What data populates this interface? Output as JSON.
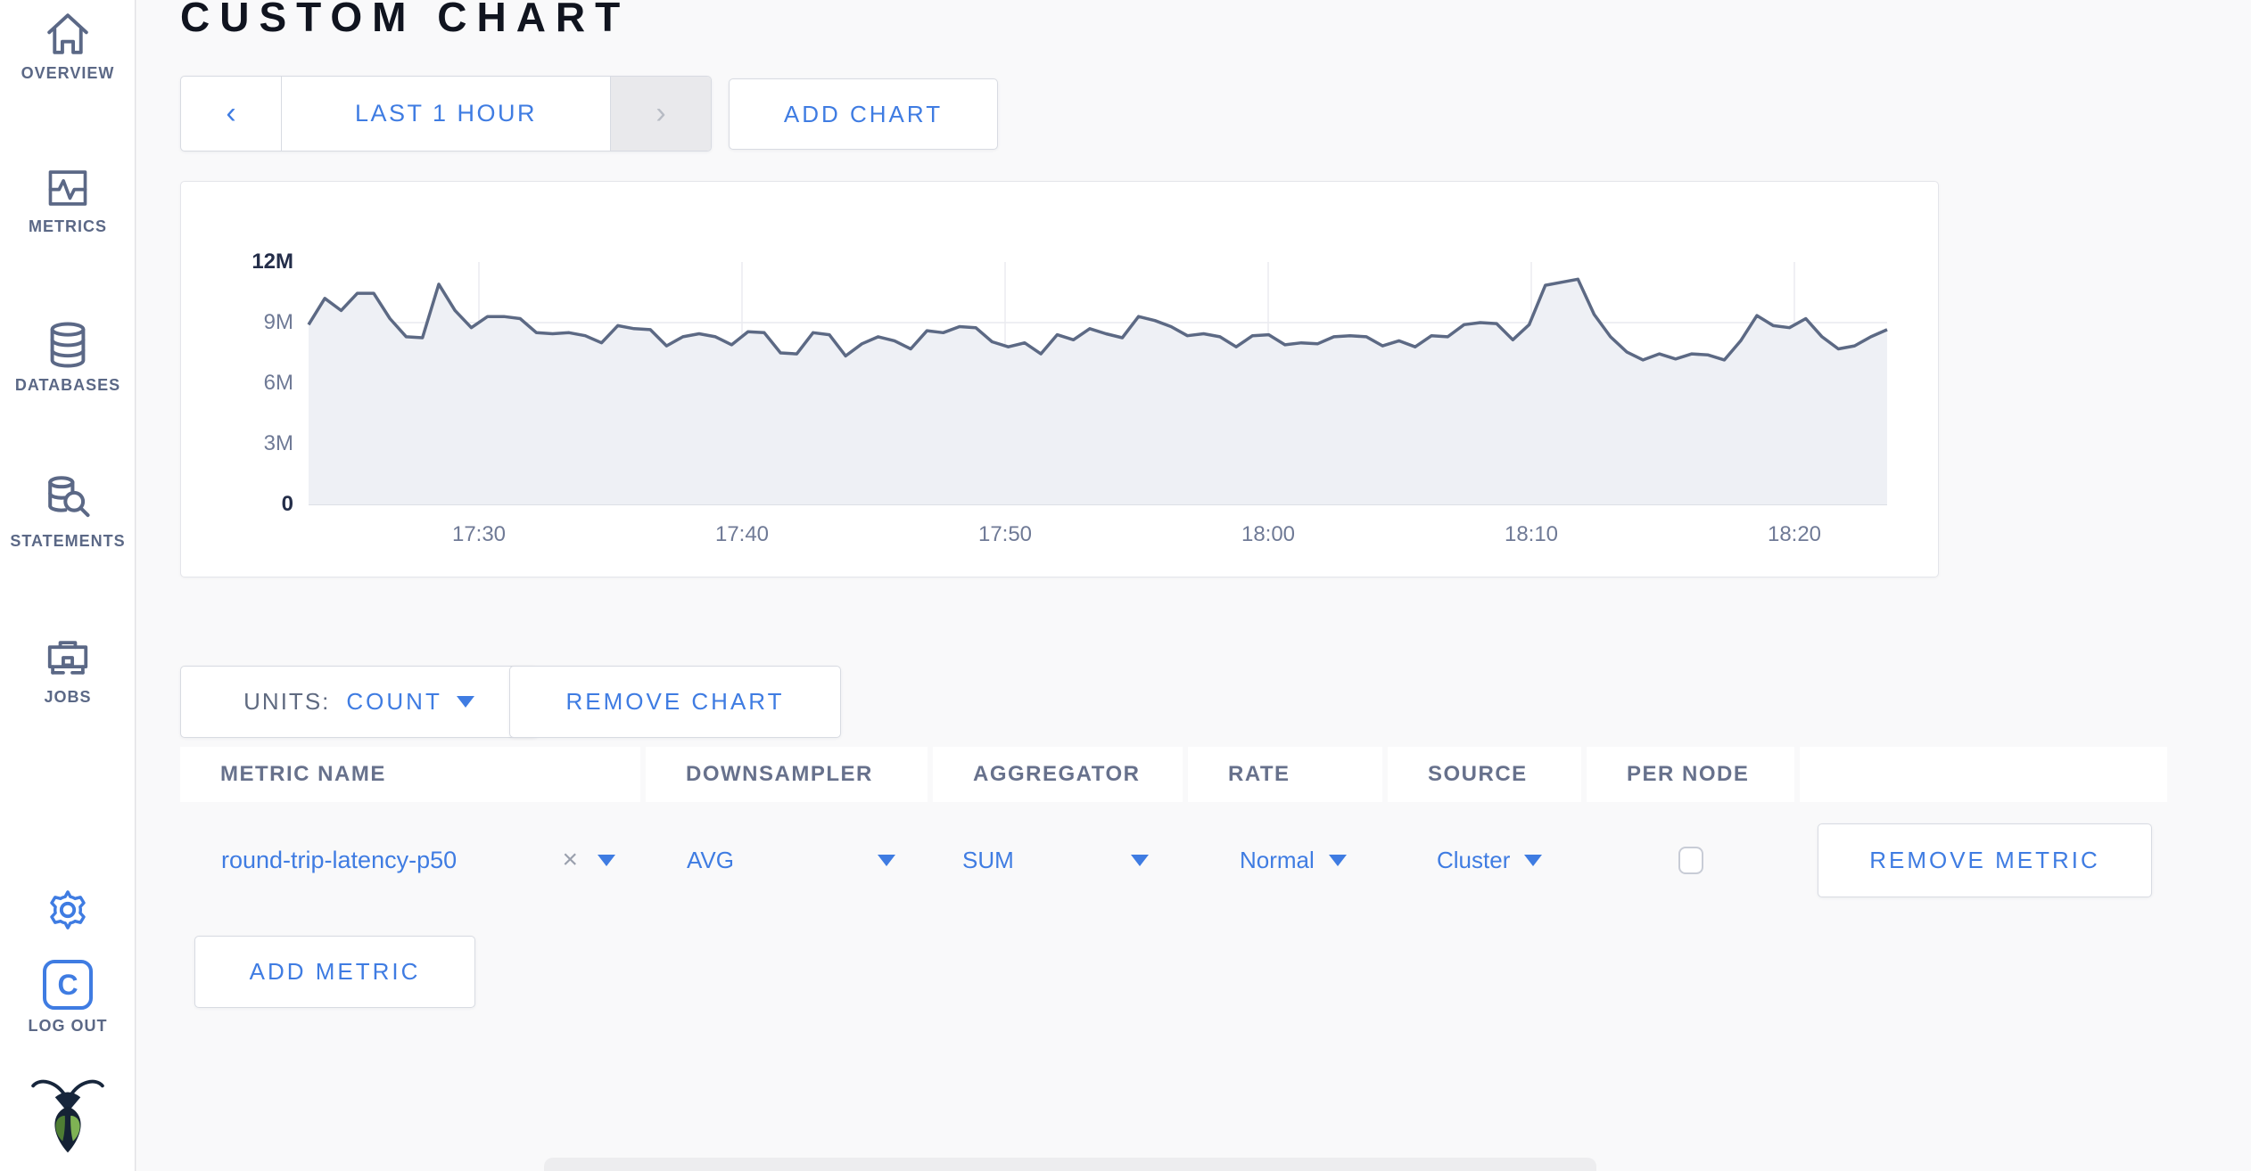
{
  "colors": {
    "accent_blue": "#3f7ce2",
    "slate": "#5b6886",
    "logout_blue": "#2233dd",
    "title_dark": "#10141f",
    "axis_gray": "#6f7a96",
    "chart_line": "#5c6984",
    "chart_fill": "#eef0f5",
    "gridline": "#e9eaef"
  },
  "sidebar": {
    "items": [
      {
        "label": "OVERVIEW",
        "icon": "home-icon"
      },
      {
        "label": "METRICS",
        "icon": "metrics-icon"
      },
      {
        "label": "DATABASES",
        "icon": "database-icon"
      },
      {
        "label": "STATEMENTS",
        "icon": "statements-icon"
      },
      {
        "label": "JOBS",
        "icon": "briefcase-icon"
      }
    ],
    "gear_icon": "gear-icon",
    "logout": {
      "logo_letter": "C",
      "label": "LOG OUT"
    },
    "logo_icon": "cockroach-logo"
  },
  "header": {
    "title": "CUSTOM CHART"
  },
  "controls": {
    "prev_symbol": "‹",
    "time_range": "LAST 1 HOUR",
    "next_symbol": "›",
    "add_chart": "ADD CHART"
  },
  "chart_controls": {
    "units_prefix": "UNITS:",
    "units_value": "COUNT",
    "remove_chart": "REMOVE CHART"
  },
  "chart_data": {
    "type": "area",
    "title": "",
    "unit": "count",
    "x_ticks": [
      "17:30",
      "17:40",
      "17:50",
      "18:00",
      "18:10",
      "18:20"
    ],
    "y_ticks": [
      "0",
      "3M",
      "6M",
      "9M",
      "12M"
    ],
    "ylim_millions": [
      0,
      12
    ],
    "grid": true,
    "legend": "none",
    "series": [
      {
        "name": "round-trip-latency-p50",
        "values_millions": [
          8.9,
          10.2,
          9.6,
          10.45,
          10.45,
          9.2,
          8.3,
          8.25,
          10.9,
          9.6,
          8.75,
          9.3,
          9.3,
          9.2,
          8.5,
          8.45,
          8.5,
          8.35,
          8.0,
          8.85,
          8.7,
          8.65,
          7.85,
          8.3,
          8.45,
          8.3,
          7.9,
          8.55,
          8.5,
          7.5,
          7.45,
          8.5,
          8.4,
          7.35,
          7.95,
          8.3,
          8.1,
          7.7,
          8.6,
          8.5,
          8.8,
          8.75,
          8.05,
          7.8,
          8.0,
          7.45,
          8.4,
          8.15,
          8.7,
          8.45,
          8.25,
          9.3,
          9.1,
          8.8,
          8.35,
          8.45,
          8.3,
          7.8,
          8.35,
          8.4,
          7.9,
          8.0,
          7.95,
          8.3,
          8.35,
          8.3,
          7.85,
          8.1,
          7.8,
          8.35,
          8.3,
          8.9,
          9.0,
          8.95,
          8.15,
          8.9,
          10.85,
          11.0,
          11.15,
          9.4,
          8.3,
          7.55,
          7.15,
          7.45,
          7.2,
          7.45,
          7.4,
          7.15,
          8.1,
          9.35,
          8.85,
          8.75,
          9.2,
          8.3,
          7.7,
          7.85,
          8.3,
          8.65
        ]
      }
    ]
  },
  "metrics_table": {
    "columns": [
      "METRIC NAME",
      "DOWNSAMPLER",
      "AGGREGATOR",
      "RATE",
      "SOURCE",
      "PER NODE",
      ""
    ],
    "row": {
      "metric_name": "round-trip-latency-p50",
      "clear_symbol": "×",
      "downsampler": "AVG",
      "aggregator": "SUM",
      "rate": "Normal",
      "source": "Cluster",
      "per_node_checked": false,
      "remove_metric": "REMOVE METRIC"
    },
    "add_metric": "ADD METRIC"
  }
}
